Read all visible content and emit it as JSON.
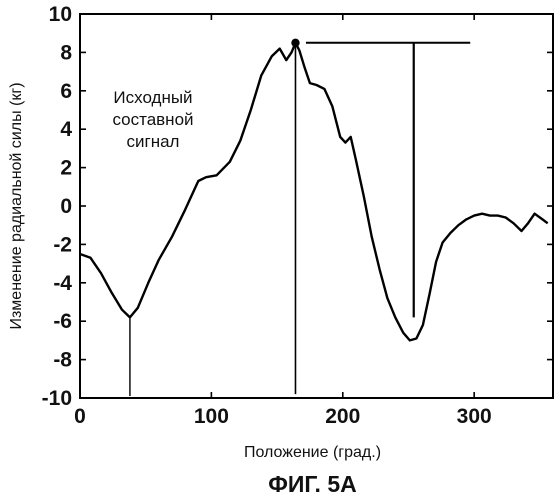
{
  "chart_data": {
    "type": "line",
    "title": "",
    "xlabel": "Положение (град.)",
    "ylabel": "Изменение радиальной силы (кг)",
    "xlim": [
      0,
      360
    ],
    "ylim": [
      -10,
      10
    ],
    "x_ticks": [
      "0",
      "100",
      "200",
      "300"
    ],
    "y_ticks": [
      "10",
      "8",
      "6",
      "4",
      "2",
      "0",
      "-2",
      "-4",
      "-6",
      "-8",
      "-10"
    ],
    "grid": false,
    "annotation": [
      "Исходный",
      "составной",
      "сигнал"
    ],
    "caption": "ФИГ. 5А",
    "peak_marker": {
      "x": 164,
      "y": 8.5
    },
    "series": [
      {
        "x": [
          0,
          8,
          16,
          24,
          32,
          38,
          44,
          52,
          60,
          70,
          80,
          90,
          96,
          104,
          114,
          122,
          130,
          138,
          146,
          152,
          157,
          161,
          164,
          167,
          171,
          175,
          180,
          186,
          192,
          198,
          202,
          206,
          210,
          216,
          222,
          228,
          234,
          240,
          246,
          251,
          256,
          261,
          266,
          271,
          276,
          282,
          288,
          294,
          300,
          306,
          312,
          318,
          324,
          330,
          336,
          341,
          346,
          352,
          356
        ],
        "values": [
          -2.5,
          -2.7,
          -3.5,
          -4.5,
          -5.4,
          -5.8,
          -5.3,
          -4.0,
          -2.8,
          -1.6,
          -0.2,
          1.3,
          1.5,
          1.6,
          2.3,
          3.4,
          5.0,
          6.8,
          7.8,
          8.2,
          7.6,
          8.0,
          8.5,
          8.1,
          7.2,
          6.4,
          6.3,
          6.1,
          5.2,
          3.6,
          3.3,
          3.6,
          2.4,
          0.5,
          -1.6,
          -3.3,
          -4.8,
          -5.8,
          -6.6,
          -7.0,
          -6.9,
          -6.2,
          -4.6,
          -2.9,
          -1.9,
          -1.4,
          -1.0,
          -0.7,
          -0.5,
          -0.4,
          -0.5,
          -0.5,
          -0.6,
          -0.9,
          -1.3,
          -0.9,
          -0.4,
          -0.7,
          -0.9
        ]
      }
    ]
  }
}
